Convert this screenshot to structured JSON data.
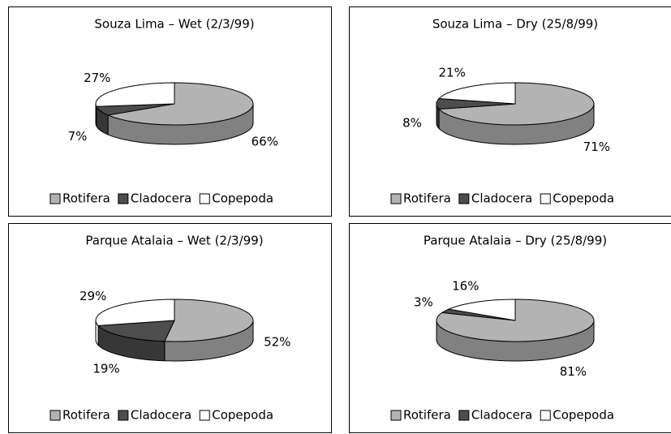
{
  "chart_data": [
    {
      "type": "pie",
      "title": "Souza Lima – Wet  (2/3/99)",
      "categories": [
        "Rotifera",
        "Cladocera",
        "Copepoda"
      ],
      "values": [
        66,
        7,
        27
      ],
      "value_labels": [
        "66%",
        "7%",
        "27%"
      ],
      "colors": [
        "#b3b3b3",
        "#4d4d4d",
        "#ffffff"
      ]
    },
    {
      "type": "pie",
      "title": "Souza Lima – Dry (25/8/99)",
      "categories": [
        "Rotifera",
        "Cladocera",
        "Copepoda"
      ],
      "values": [
        71,
        8,
        21
      ],
      "value_labels": [
        "71%",
        "8%",
        "21%"
      ],
      "colors": [
        "#b3b3b3",
        "#4d4d4d",
        "#ffffff"
      ]
    },
    {
      "type": "pie",
      "title": "Parque Atalaia – Wet (2/3/99)",
      "categories": [
        "Rotifera",
        "Cladocera",
        "Copepoda"
      ],
      "values": [
        52,
        19,
        29
      ],
      "value_labels": [
        "52%",
        "19%",
        "29%"
      ],
      "colors": [
        "#b3b3b3",
        "#4d4d4d",
        "#ffffff"
      ]
    },
    {
      "type": "pie",
      "title": "Parque Atalaia – Dry (25/8/99)",
      "categories": [
        "Rotifera",
        "Cladocera",
        "Copepoda"
      ],
      "values": [
        81,
        3,
        16
      ],
      "value_labels": [
        "81%",
        "3%",
        "16%"
      ],
      "colors": [
        "#b3b3b3",
        "#4d4d4d",
        "#ffffff"
      ]
    }
  ]
}
